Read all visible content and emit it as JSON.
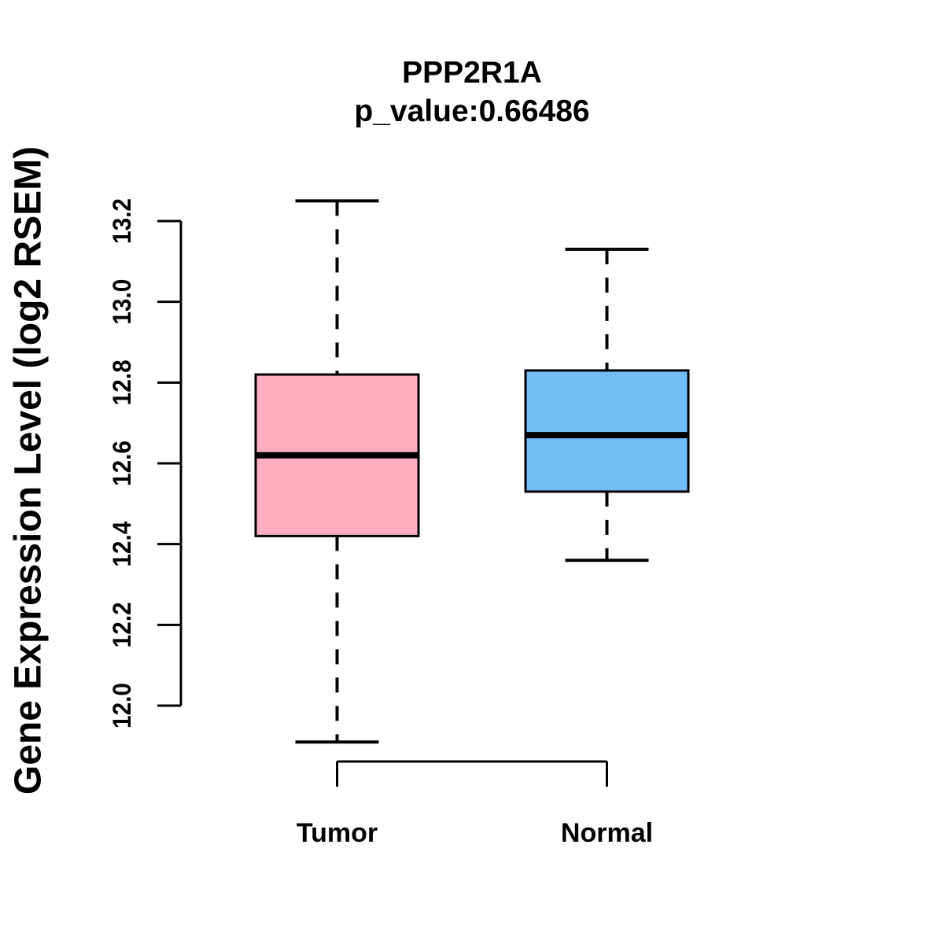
{
  "chart_data": {
    "type": "boxplot",
    "title": "PPP2R1A",
    "subtitle": "p_value:0.66486",
    "ylabel": "Gene Expression Level (log2 RSEM)",
    "xlabel": "",
    "categories": [
      "Tumor",
      "Normal"
    ],
    "ytick_labels": [
      "12.0",
      "12.2",
      "12.4",
      "12.6",
      "12.8",
      "13.0",
      "13.2"
    ],
    "ylim": [
      11.85,
      13.3
    ],
    "grid": false,
    "legend": "none",
    "colors": {
      "tumor_fill": "#FCAEC1",
      "normal_fill": "#73BDF6",
      "line": "#000000",
      "background": "#FFFFFF"
    },
    "series": [
      {
        "name": "Tumor",
        "color": "#FCAEC1",
        "stats": {
          "whisker_low": 11.91,
          "q1": 12.42,
          "median": 12.62,
          "q3": 12.82,
          "whisker_high": 13.25
        }
      },
      {
        "name": "Normal",
        "color": "#73BDF6",
        "stats": {
          "whisker_low": 12.36,
          "q1": 12.53,
          "median": 12.67,
          "q3": 12.83,
          "whisker_high": 13.13
        }
      }
    ]
  }
}
